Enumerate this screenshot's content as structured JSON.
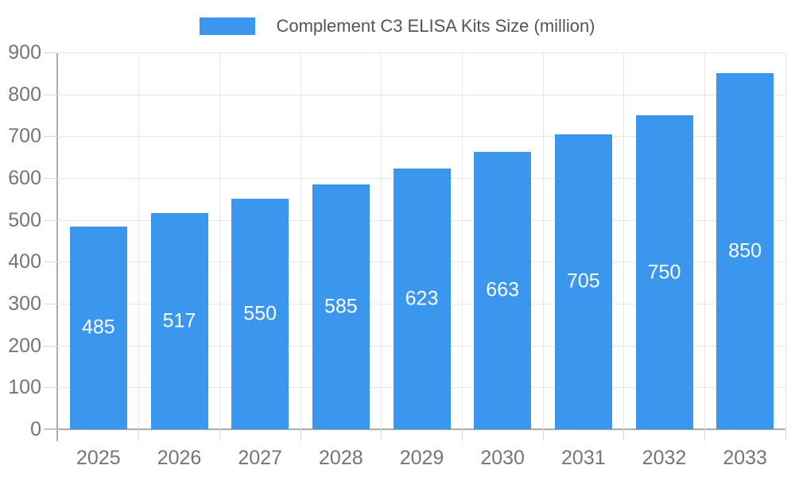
{
  "legend": {
    "label": "Complement C3 ELISA Kits Size (million)",
    "swatch_color": "#3b97ed"
  },
  "chart_data": {
    "type": "bar",
    "title": "Complement C3 ELISA Kits Size (million)",
    "categories": [
      "2025",
      "2026",
      "2027",
      "2028",
      "2029",
      "2030",
      "2031",
      "2032",
      "2033"
    ],
    "values": [
      485,
      517,
      550,
      585,
      623,
      663,
      705,
      750,
      850
    ],
    "xlabel": "",
    "ylabel": "",
    "ylim": [
      0,
      900
    ],
    "ytick_step": 100,
    "ytick_labels": [
      "0",
      "100",
      "200",
      "300",
      "400",
      "500",
      "600",
      "700",
      "800",
      "900"
    ],
    "grid": true,
    "legend_position": "top-center",
    "annotations": "values shown inside bars",
    "colors": {
      "bar": "#3b97ed",
      "annotation_text": "#ffffff",
      "axis_label": "#757575",
      "legend_text": "#555555",
      "gridline": "#e6e6e6",
      "tick": "#d9d9d9",
      "axis_line": "#ababab",
      "background": "#ffffff"
    }
  }
}
